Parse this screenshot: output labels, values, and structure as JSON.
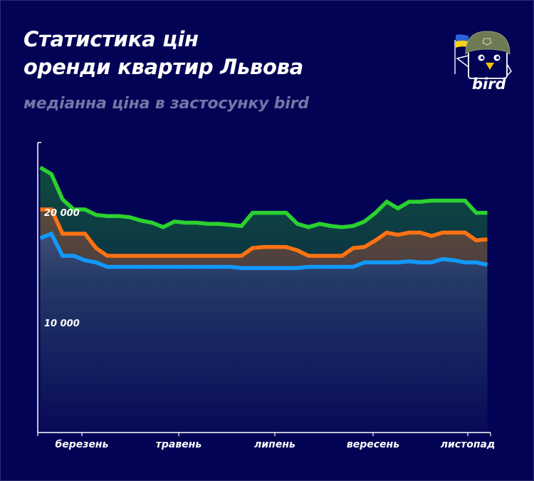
{
  "header": {
    "title_line1": "Статистика цін",
    "title_line2": "оренди квартир Львова",
    "subtitle": "медіанна ціна в застосунку bird"
  },
  "logo": {
    "text": "bird",
    "icon": "bird-mascot-helmet-ukraine-flag-icon"
  },
  "colors": {
    "background": "#030356",
    "green": "#2ad12f",
    "orange": "#ff7213",
    "blue": "#1199ff",
    "subtitle": "#7375a5"
  },
  "chart_data": {
    "type": "line",
    "title": "Статистика цін оренди квартир Львова",
    "subtitle": "медіанна ціна в застосунку bird",
    "xlabel": "",
    "ylabel": "",
    "ylim": [
      0,
      26000
    ],
    "y_ticks_labeled": [
      "10 000",
      "20 000"
    ],
    "y_tick_values": [
      10000,
      20000
    ],
    "x_tick_labels": [
      "березень",
      "травень",
      "липень",
      "вересень",
      "листопад"
    ],
    "x_tick_index": [
      4,
      13,
      22,
      30.5,
      39
    ],
    "grid": false,
    "legend": "none",
    "x": [
      0,
      1,
      2,
      3,
      4,
      5,
      6,
      7,
      8,
      9,
      10,
      11,
      12,
      13,
      14,
      15,
      16,
      17,
      18,
      19,
      20,
      21,
      22,
      23,
      24,
      25,
      26,
      27,
      28,
      29,
      30,
      31,
      32,
      33,
      34,
      35,
      36,
      37,
      38,
      39,
      40
    ],
    "series": [
      {
        "name": "green",
        "color": "#2ad12f",
        "values": [
          24000,
          23400,
          21100,
          20200,
          20200,
          19700,
          19600,
          19600,
          19500,
          19200,
          19000,
          18600,
          19100,
          19000,
          19000,
          18900,
          18900,
          18800,
          18700,
          19900,
          19900,
          19900,
          19900,
          18900,
          18600,
          18900,
          18700,
          18600,
          18700,
          19100,
          19900,
          20900,
          20300,
          20900,
          20900,
          21000,
          21000,
          21000,
          21000,
          19900,
          19900
        ]
      },
      {
        "name": "orange",
        "color": "#ff7213",
        "values": [
          20200,
          20200,
          18000,
          18000,
          18000,
          16700,
          16000,
          16000,
          16000,
          16000,
          16000,
          16000,
          16000,
          16000,
          16000,
          16000,
          16000,
          16000,
          16000,
          16700,
          16800,
          16800,
          16800,
          16500,
          16000,
          16000,
          16000,
          16000,
          16700,
          16800,
          17400,
          18100,
          17900,
          18100,
          18100,
          17800,
          18100,
          18100,
          18100,
          17400,
          17500
        ]
      },
      {
        "name": "blue",
        "color": "#1199ff",
        "values": [
          17600,
          18000,
          16000,
          16000,
          15600,
          15400,
          15000,
          15000,
          15000,
          15000,
          15000,
          15000,
          15000,
          15000,
          15000,
          15000,
          15000,
          15000,
          14900,
          14900,
          14900,
          14900,
          14900,
          14900,
          15000,
          15000,
          15000,
          15000,
          15000,
          15400,
          15400,
          15400,
          15400,
          15500,
          15400,
          15400,
          15700,
          15600,
          15400,
          15400,
          15200
        ]
      }
    ]
  }
}
